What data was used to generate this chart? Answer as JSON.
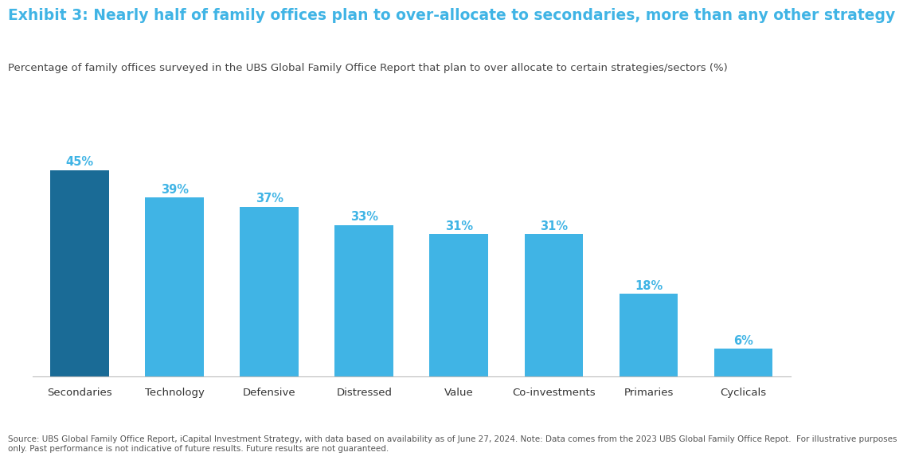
{
  "title": "Exhibit 3: Nearly half of family offices plan to over-allocate to secondaries, more than any other strategy",
  "subtitle": "Percentage of family offices surveyed in the UBS Global Family Office Report that plan to over allocate to certain strategies/sectors (%)",
  "categories": [
    "Secondaries",
    "Technology",
    "Defensive",
    "Distressed",
    "Value",
    "Co-investments",
    "Primaries",
    "Cyclicals"
  ],
  "values": [
    45,
    39,
    37,
    33,
    31,
    31,
    18,
    6
  ],
  "labels": [
    "45%",
    "39%",
    "37%",
    "33%",
    "31%",
    "31%",
    "18%",
    "6%"
  ],
  "bar_colors": [
    "#1a6b96",
    "#40b4e5",
    "#40b4e5",
    "#40b4e5",
    "#40b4e5",
    "#40b4e5",
    "#40b4e5",
    "#40b4e5"
  ],
  "label_color": "#40b4e5",
  "title_color": "#40b4e5",
  "subtitle_color": "#444444",
  "background_color": "#ffffff",
  "footer": "Source: UBS Global Family Office Report, iCapital Investment Strategy, with data based on availability as of June 27, 2024. Note: Data comes from the 2023 UBS Global Family Office Repot.  For illustrative purposes only. Past performance is not indicative of future results. Future results are not guaranteed.",
  "ylim": [
    0,
    52
  ],
  "title_fontsize": 13.5,
  "subtitle_fontsize": 9.5,
  "label_fontsize": 10.5,
  "tick_fontsize": 9.5,
  "footer_fontsize": 7.5
}
